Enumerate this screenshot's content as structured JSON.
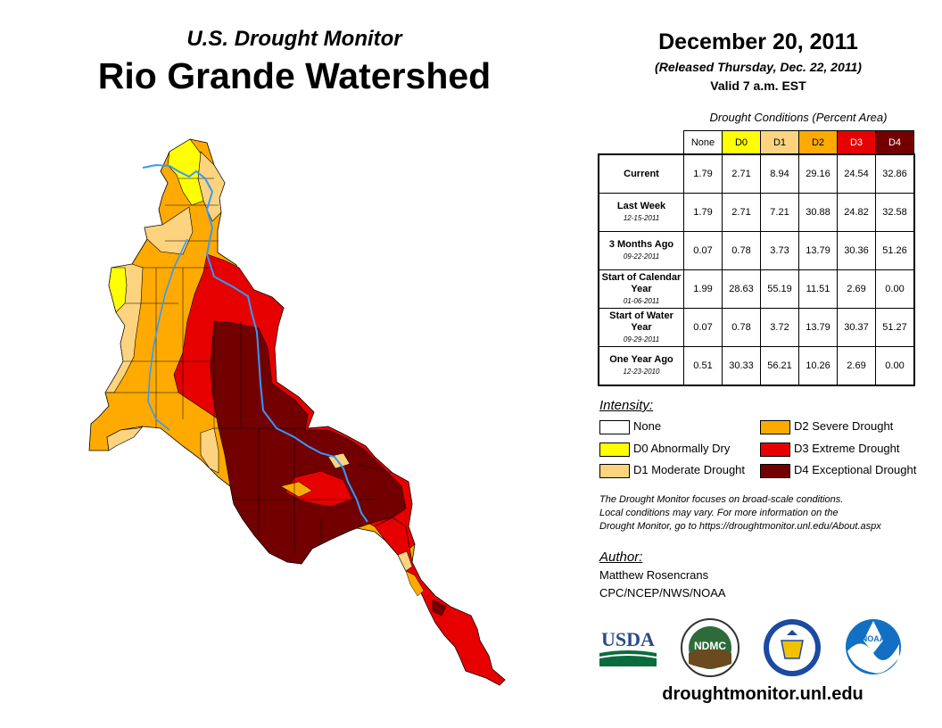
{
  "header": {
    "subtitle": "U.S. Drought Monitor",
    "title": "Rio Grande Watershed",
    "date": "December 20, 2011",
    "released": "(Released Thursday, Dec. 22, 2011)",
    "valid": "Valid 7 a.m. EST"
  },
  "conditions_table": {
    "caption": "Drought Conditions (Percent Area)",
    "columns": [
      {
        "label": "None",
        "color": "#ffffff",
        "text_color": "#000000"
      },
      {
        "label": "D0",
        "color": "#ffff00",
        "text_color": "#000000"
      },
      {
        "label": "D1",
        "color": "#fcd37f",
        "text_color": "#000000"
      },
      {
        "label": "D2",
        "color": "#ffaa00",
        "text_color": "#000000"
      },
      {
        "label": "D3",
        "color": "#e60000",
        "text_color": "#ffffff"
      },
      {
        "label": "D4",
        "color": "#730000",
        "text_color": "#ffffff"
      }
    ],
    "rows": [
      {
        "label": "Current",
        "date": "",
        "values": [
          "1.79",
          "2.71",
          "8.94",
          "29.16",
          "24.54",
          "32.86"
        ]
      },
      {
        "label": "Last Week",
        "date": "12-15-2011",
        "values": [
          "1.79",
          "2.71",
          "7.21",
          "30.88",
          "24.82",
          "32.58"
        ]
      },
      {
        "label": "3 Months Ago",
        "date": "09-22-2011",
        "values": [
          "0.07",
          "0.78",
          "3.73",
          "13.79",
          "30.36",
          "51.26"
        ]
      },
      {
        "label": "Start of Calendar Year",
        "date": "01-06-2011",
        "values": [
          "1.99",
          "28.63",
          "55.19",
          "11.51",
          "2.69",
          "0.00"
        ]
      },
      {
        "label": "Start of Water Year",
        "date": "09-29-2011",
        "values": [
          "0.07",
          "0.78",
          "3.72",
          "13.79",
          "30.37",
          "51.27"
        ]
      },
      {
        "label": "One Year Ago",
        "date": "12-23-2010",
        "values": [
          "0.51",
          "30.33",
          "56.21",
          "10.26",
          "2.69",
          "0.00"
        ]
      }
    ]
  },
  "legend": {
    "title": "Intensity:",
    "items": [
      {
        "label": "None",
        "color": "#ffffff"
      },
      {
        "label": "D0 Abnormally Dry",
        "color": "#ffff00"
      },
      {
        "label": "D1 Moderate Drought",
        "color": "#fcd37f"
      },
      {
        "label": "D2 Severe Drought",
        "color": "#ffaa00"
      },
      {
        "label": "D3 Extreme Drought",
        "color": "#e60000"
      },
      {
        "label": "D4 Exceptional Drought",
        "color": "#730000"
      }
    ]
  },
  "disclaimer": {
    "line1": "The Drought Monitor focuses on broad-scale conditions.",
    "line2": "Local conditions may vary. For more information on the",
    "line3": "Drought Monitor, go to https://droughtmonitor.unl.edu/About.aspx"
  },
  "author": {
    "label": "Author:",
    "name": "Matthew Rosencrans",
    "org": "CPC/NCEP/NWS/NOAA"
  },
  "logos": {
    "usda": "USDA",
    "ndmc": "NDMC",
    "noaa": "NOAA"
  },
  "website": "droughtmonitor.unl.edu"
}
